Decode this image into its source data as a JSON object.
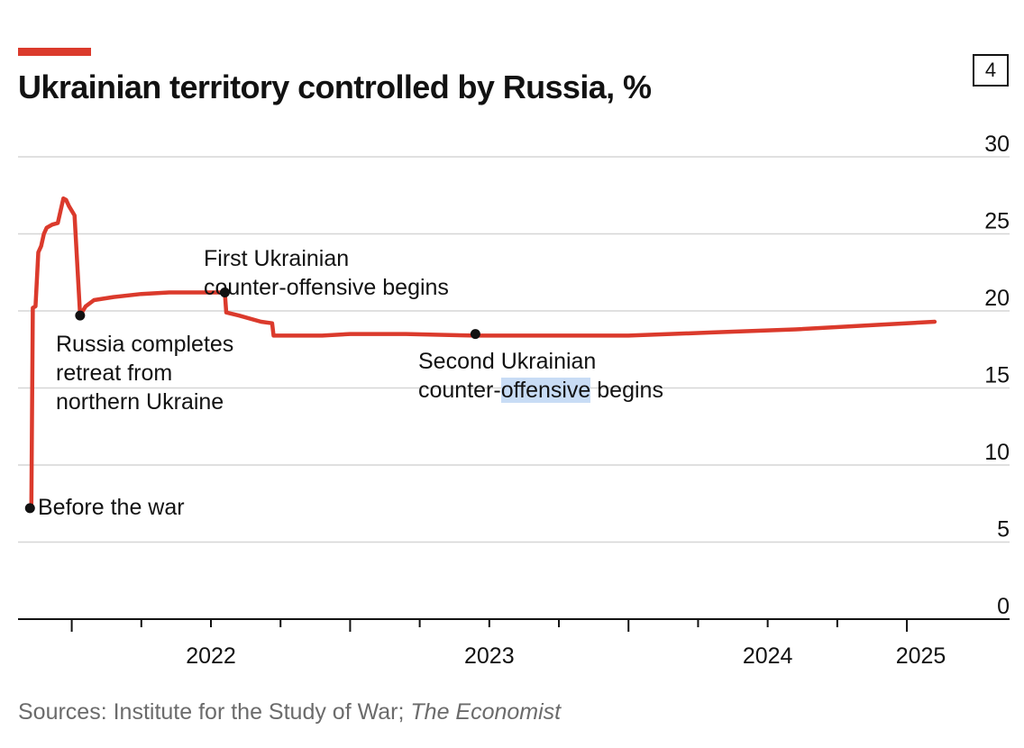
{
  "header": {
    "chart_number": "4"
  },
  "chart_data": {
    "type": "line",
    "title": "Ukrainian territory controlled by Russia, %",
    "xlabel": "",
    "ylabel": "",
    "ylim": [
      0,
      30
    ],
    "xlim": [
      2021.82,
      2025.22
    ],
    "yticks": [
      0,
      5,
      10,
      15,
      20,
      25,
      30
    ],
    "xtick_labels": [
      {
        "label": "2022",
        "year": 2022.5
      },
      {
        "label": "2023",
        "year": 2023.5
      },
      {
        "label": "2024",
        "year": 2024.5
      },
      {
        "label": "2025",
        "year": 2025.05
      }
    ],
    "series": [
      {
        "name": "Ukrainian territory controlled by Russia",
        "color": "#db3a2c",
        "x": [
          2021.85,
          2021.855,
          2021.86,
          2021.87,
          2021.88,
          2021.89,
          2021.9,
          2021.91,
          2021.93,
          2021.95,
          2021.97,
          2021.98,
          2021.99,
          2022.01,
          2022.03,
          2022.04,
          2022.05,
          2022.08,
          2022.15,
          2022.25,
          2022.35,
          2022.5,
          2022.55,
          2022.555,
          2022.6,
          2022.68,
          2022.72,
          2022.725,
          2022.9,
          2023.0,
          2023.2,
          2023.45,
          2023.7,
          2024.0,
          2024.3,
          2024.6,
          2024.9,
          2025.1
        ],
        "values": [
          7.2,
          7.5,
          20.2,
          20.3,
          23.8,
          24.2,
          25.0,
          25.4,
          25.6,
          25.7,
          27.3,
          27.2,
          26.8,
          26.2,
          19.7,
          20.0,
          20.3,
          20.7,
          20.9,
          21.1,
          21.2,
          21.2,
          21.2,
          19.9,
          19.7,
          19.3,
          19.2,
          18.4,
          18.4,
          18.5,
          18.5,
          18.4,
          18.4,
          18.4,
          18.6,
          18.8,
          19.1,
          19.3
        ]
      }
    ],
    "annotations": [
      {
        "id": "before",
        "x": 2021.85,
        "y": 7.2,
        "lines": [
          "Before the war"
        ]
      },
      {
        "id": "retreat",
        "x": 2022.03,
        "y": 19.7,
        "lines": [
          "Russia completes",
          "retreat from",
          "northern Ukraine"
        ]
      },
      {
        "id": "first",
        "x": 2022.55,
        "y": 21.2,
        "lines": [
          "First Ukrainian",
          "counter-offensive begins"
        ]
      },
      {
        "id": "second",
        "x": 2023.45,
        "y": 18.5,
        "lines": [
          "Second Ukrainian",
          "counter-offensive begins"
        ],
        "highlight": "offensive"
      }
    ]
  },
  "source": {
    "text": "Sources: Institute for the Study of War; ",
    "publication": "The Economist"
  }
}
